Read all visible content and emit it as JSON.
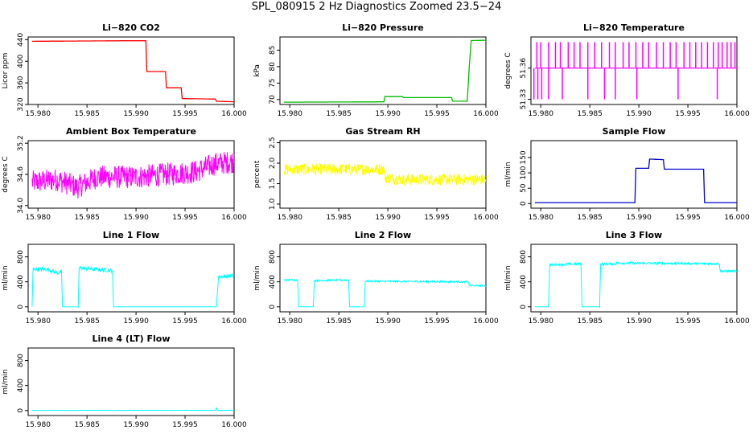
{
  "figure": {
    "title": "SPL_080915  2 Hz Diagnostics Zoomed 23.5−24"
  },
  "chart_data": [
    {
      "type": "line",
      "title": "Li−820 CO2",
      "ylabel": "Licor ppm",
      "color": "#ff0000",
      "xlim": [
        15.979,
        16.0
      ],
      "xticks": [
        15.98,
        15.985,
        15.99,
        15.995,
        16.0
      ],
      "xticklabels": [
        "15.980",
        "15.985",
        "15.990",
        "15.995",
        "16.000"
      ],
      "ylim": [
        320,
        445
      ],
      "yticks": [
        320,
        360,
        400,
        440
      ],
      "yticklabels": [
        "320",
        "360",
        "400",
        "440"
      ],
      "x": [
        15.9794,
        15.989,
        15.991,
        15.9911,
        15.993,
        15.9931,
        15.9946,
        15.9947,
        15.9981,
        15.9982,
        16.0
      ],
      "y": [
        437,
        438,
        438,
        381,
        381,
        351,
        351,
        331,
        330,
        326,
        325
      ]
    },
    {
      "type": "line",
      "title": "Li−820 Pressure",
      "ylabel": "kPa",
      "color": "#00bb00",
      "xlim": [
        15.979,
        16.0
      ],
      "xticks": [
        15.98,
        15.985,
        15.99,
        15.995,
        16.0
      ],
      "xticklabels": [
        "15.980",
        "15.985",
        "15.990",
        "15.995",
        "16.000"
      ],
      "ylim": [
        68.5,
        89
      ],
      "yticks": [
        70,
        75,
        80,
        85
      ],
      "yticklabels": [
        "70",
        "75",
        "80",
        "85"
      ],
      "x": [
        15.9794,
        15.9896,
        15.9897,
        15.9915,
        15.9916,
        15.9965,
        15.9966,
        15.9981,
        15.9983,
        15.9985,
        16.0
      ],
      "y": [
        69.2,
        69.3,
        70.9,
        70.9,
        70.6,
        70.6,
        69.5,
        69.5,
        80,
        87.9,
        88
      ]
    },
    {
      "type": "line",
      "title": "Li−820 Temperature",
      "ylabel": "degrees C",
      "color": "#ff00ff",
      "xlim": [
        15.979,
        16.0
      ],
      "xticks": [
        15.98,
        15.985,
        15.99,
        15.995,
        16.0
      ],
      "xticklabels": [
        "15.980",
        "15.985",
        "15.990",
        "15.995",
        "16.000"
      ],
      "ylim": [
        51.325,
        51.39
      ],
      "yticks": [
        51.33,
        51.36
      ],
      "yticklabels": [
        "51.33",
        "51.36"
      ],
      "baseline": 51.36,
      "upper": 51.385,
      "lower": 51.33,
      "spikes_up": [
        15.9796,
        15.98,
        15.9808,
        15.9815,
        15.982,
        15.9828,
        15.9834,
        15.984,
        15.9848,
        15.9855,
        15.9862,
        15.987,
        15.9876,
        15.9884,
        15.989,
        15.9897,
        15.9904,
        15.991,
        15.9918,
        15.9925,
        15.9932,
        15.9938,
        15.9946,
        15.9952,
        15.9958,
        15.9964,
        15.997,
        15.9976,
        15.9981,
        15.9985,
        15.999,
        15.9994,
        15.9998
      ],
      "spikes_down": [
        15.9793,
        15.9797,
        15.9801,
        15.9808,
        15.9822,
        15.9848,
        15.9865,
        15.9876,
        15.9898,
        15.994,
        15.998
      ]
    },
    {
      "type": "line",
      "title": "Ambient Box Temperature",
      "ylabel": "degrees C",
      "color": "#ff00ff",
      "xlim": [
        15.979,
        16.0
      ],
      "xticks": [
        15.98,
        15.985,
        15.99,
        15.995,
        16.0
      ],
      "xticklabels": [
        "15.980",
        "15.985",
        "15.990",
        "15.995",
        "16.000"
      ],
      "ylim": [
        33.95,
        35.25
      ],
      "yticks": [
        34.0,
        34.6,
        35.2
      ],
      "yticklabels": [
        "34.0",
        "34.6",
        "35.2"
      ],
      "x": [
        15.9794,
        15.982,
        15.984,
        15.986,
        15.99,
        15.993,
        15.996,
        15.998,
        16.0
      ],
      "y": [
        34.45,
        34.5,
        34.35,
        34.55,
        34.55,
        34.6,
        34.65,
        34.8,
        34.85
      ],
      "noise_amplitude": 0.45
    },
    {
      "type": "line",
      "title": "Gas Stream RH",
      "ylabel": "percent",
      "color": "#ffff00",
      "xlim": [
        15.979,
        16.0
      ],
      "xticks": [
        15.98,
        15.985,
        15.99,
        15.995,
        16.0
      ],
      "xticklabels": [
        "15.980",
        "15.985",
        "15.990",
        "15.995",
        "16.000"
      ],
      "ylim": [
        0.9,
        2.55
      ],
      "yticks": [
        1.0,
        1.5,
        2.0,
        2.5
      ],
      "yticklabels": [
        "1.0",
        "1.5",
        "2.0",
        "2.5"
      ],
      "x": [
        15.9794,
        15.9896,
        15.9897,
        15.9915,
        16.0
      ],
      "y": [
        1.85,
        1.85,
        1.65,
        1.6,
        1.6
      ],
      "noise_amplitude": 0.28
    },
    {
      "type": "line",
      "title": "Sample Flow",
      "ylabel": "ml/min",
      "color": "#0000cc",
      "xlim": [
        15.979,
        16.0
      ],
      "xticks": [
        15.98,
        15.985,
        15.99,
        15.995,
        16.0
      ],
      "xticklabels": [
        "15.980",
        "15.985",
        "15.990",
        "15.995",
        "16.000"
      ],
      "ylim": [
        -15,
        205
      ],
      "yticks": [
        0,
        50,
        100,
        150
      ],
      "yticklabels": [
        "0",
        "50",
        "100",
        "150"
      ],
      "x": [
        15.9794,
        15.9896,
        15.9897,
        15.991,
        15.9911,
        15.9925,
        15.9926,
        15.9966,
        15.9967,
        16.0
      ],
      "y": [
        3,
        3,
        115,
        115,
        145,
        143,
        112,
        112,
        3,
        3
      ]
    },
    {
      "type": "line",
      "title": "Line 1 Flow",
      "ylabel": "ml/min",
      "color": "#00ffff",
      "xlim": [
        15.979,
        16.0
      ],
      "xticks": [
        15.98,
        15.985,
        15.99,
        15.995,
        16.0
      ],
      "xticklabels": [
        "15.980",
        "15.985",
        "15.990",
        "15.995",
        "16.000"
      ],
      "ylim": [
        -80,
        1000
      ],
      "yticks": [
        0,
        400,
        800
      ],
      "yticklabels": [
        "0",
        "400",
        "800"
      ],
      "x": [
        15.9794,
        15.9795,
        15.981,
        15.982,
        15.9824,
        15.9825,
        15.9841,
        15.9842,
        15.986,
        15.9876,
        15.9877,
        15.9982,
        15.9984,
        16.0
      ],
      "y": [
        0,
        600,
        600,
        540,
        560,
        0,
        0,
        620,
        600,
        580,
        0,
        0,
        480,
        500
      ],
      "noise_amplitude": 60
    },
    {
      "type": "line",
      "title": "Line 2 Flow",
      "ylabel": "ml/min",
      "color": "#00ffff",
      "xlim": [
        15.979,
        16.0
      ],
      "xticks": [
        15.98,
        15.985,
        15.99,
        15.995,
        16.0
      ],
      "xticklabels": [
        "15.980",
        "15.985",
        "15.990",
        "15.995",
        "16.000"
      ],
      "ylim": [
        -80,
        1000
      ],
      "yticks": [
        0,
        400,
        800
      ],
      "yticklabels": [
        "0",
        "400",
        "800"
      ],
      "x": [
        15.9794,
        15.9808,
        15.9809,
        15.9824,
        15.9825,
        15.986,
        15.9861,
        15.9876,
        15.9877,
        15.9982,
        15.9983,
        16.0
      ],
      "y": [
        430,
        430,
        0,
        0,
        420,
        430,
        0,
        0,
        410,
        400,
        340,
        340
      ],
      "noise_amplitude": 25
    },
    {
      "type": "line",
      "title": "Line 3 Flow",
      "ylabel": "ml/min",
      "color": "#00ffff",
      "xlim": [
        15.979,
        16.0
      ],
      "xticks": [
        15.98,
        15.985,
        15.99,
        15.995,
        16.0
      ],
      "xticklabels": [
        "15.980",
        "15.985",
        "15.990",
        "15.995",
        "16.000"
      ],
      "ylim": [
        -80,
        1000
      ],
      "yticks": [
        0,
        400,
        800
      ],
      "yticklabels": [
        "0",
        "400",
        "800"
      ],
      "x": [
        15.9794,
        15.9808,
        15.9809,
        15.9841,
        15.9842,
        15.986,
        15.9861,
        15.9876,
        15.9877,
        15.9982,
        15.9983,
        16.0
      ],
      "y": [
        0,
        0,
        670,
        690,
        0,
        0,
        680,
        690,
        700,
        690,
        570,
        570
      ],
      "noise_amplitude": 35
    },
    {
      "type": "line",
      "title": "Line 4 (LT) Flow",
      "ylabel": "ml/min",
      "color": "#00ffff",
      "xlim": [
        15.979,
        16.0
      ],
      "xticks": [
        15.98,
        15.985,
        15.99,
        15.995,
        16.0
      ],
      "xticklabels": [
        "15.980",
        "15.985",
        "15.990",
        "15.995",
        "16.000"
      ],
      "ylim": [
        -80,
        1000
      ],
      "yticks": [
        0,
        400,
        800
      ],
      "yticklabels": [
        "0",
        "400",
        "800"
      ],
      "x": [
        15.9794,
        15.9981,
        15.9982,
        15.9983,
        16.0
      ],
      "y": [
        3,
        3,
        40,
        3,
        3
      ],
      "noise_amplitude": 4
    }
  ]
}
